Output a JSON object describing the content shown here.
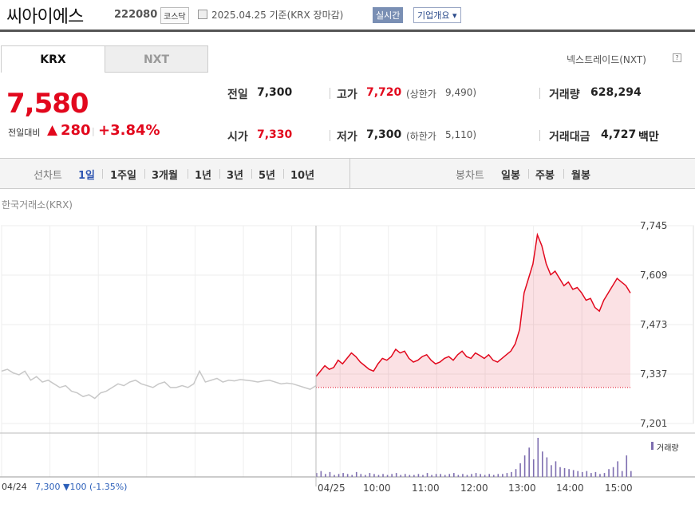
{
  "header": {
    "name": "씨아이에스",
    "code": "222080",
    "market": "코스닥",
    "base_date": "2025.04.25 기준(KRX 장마감)",
    "realtime_label": "실시간",
    "company_label": "기업개요 ▾"
  },
  "tabs": {
    "krx": "KRX",
    "nxt": "NXT",
    "nxt_link": "넥스트레이드(NXT)",
    "help": "?"
  },
  "price": {
    "current": "7,580",
    "change_label": "전일대비",
    "change_arrow": "▲",
    "change_amount": "280",
    "change_sep": "|",
    "change_pct": "+3.84%"
  },
  "summary": {
    "prev_label": "전일",
    "prev_value": "7,300",
    "open_label": "시가",
    "open_value": "7,330",
    "high_label": "고가",
    "high_value": "7,720",
    "upper_limit_label": "(상한가",
    "upper_limit_value": "9,490)",
    "low_label": "저가",
    "low_value": "7,300",
    "lower_limit_label": "(하한가",
    "lower_limit_value": "5,110)",
    "volume_label": "거래량",
    "volume_value": "628,294",
    "amount_label": "거래대금",
    "amount_value": "4,727",
    "amount_unit": "백만"
  },
  "periods": {
    "line_label": "선차트",
    "items": [
      "1일",
      "1주일",
      "3개월",
      "1년",
      "3년",
      "5년",
      "10년"
    ],
    "candle_label": "봉차트",
    "candle_items": [
      "일봉",
      "주봉",
      "월봉"
    ]
  },
  "chart_meta": {
    "market_label": "한국거래소(KRX)",
    "volume_label": "거래량"
  },
  "footer": {
    "prev_day": "04/24",
    "prev_close": "7,300 ▼100 (-1.35%)"
  },
  "colors": {
    "up": "#e2081d",
    "down": "#2b5fb9",
    "volume": "#7e6eb0",
    "prev_line": "#c8c8c8"
  },
  "chart_data": {
    "type": "line",
    "title": "",
    "y_ticks": [
      "7,745",
      "7,609",
      "7,473",
      "7,337",
      "7,201"
    ],
    "ylim": [
      7201,
      7745
    ],
    "x_ticks": [
      "04/24",
      "04/25",
      "10:00",
      "11:00",
      "12:00",
      "13:00",
      "14:00",
      "15:00"
    ],
    "reference_price": 7300,
    "prev_day_series": {
      "name": "04/24",
      "values": [
        7345,
        7350,
        7340,
        7335,
        7345,
        7320,
        7330,
        7315,
        7320,
        7310,
        7300,
        7305,
        7290,
        7285,
        7275,
        7280,
        7270,
        7285,
        7290,
        7300,
        7310,
        7305,
        7315,
        7320,
        7310,
        7305,
        7300,
        7310,
        7315,
        7300,
        7300,
        7305,
        7300,
        7310,
        7345,
        7315,
        7320,
        7325,
        7315,
        7320,
        7318,
        7322,
        7320,
        7318,
        7315,
        7318,
        7320,
        7315,
        7310,
        7312,
        7310,
        7305,
        7300,
        7295,
        7305
      ]
    },
    "today_series": {
      "name": "04/25",
      "values": [
        7330,
        7345,
        7360,
        7350,
        7355,
        7375,
        7365,
        7380,
        7395,
        7385,
        7370,
        7360,
        7350,
        7345,
        7365,
        7380,
        7375,
        7385,
        7405,
        7395,
        7400,
        7380,
        7370,
        7375,
        7385,
        7390,
        7375,
        7365,
        7370,
        7380,
        7385,
        7375,
        7390,
        7400,
        7385,
        7380,
        7395,
        7388,
        7380,
        7390,
        7375,
        7370,
        7380,
        7390,
        7400,
        7420,
        7460,
        7560,
        7600,
        7640,
        7720,
        7690,
        7640,
        7610,
        7620,
        7600,
        7580,
        7590,
        7570,
        7575,
        7560,
        7540,
        7545,
        7520,
        7510,
        7540,
        7560,
        7580,
        7600,
        7590,
        7580,
        7560
      ]
    },
    "volume_series": {
      "name": "거래량",
      "prev_values": [
        0,
        0,
        0,
        0,
        0,
        0,
        0,
        0,
        0,
        0,
        0,
        0,
        0,
        0,
        0,
        0,
        0,
        0,
        0,
        0,
        0,
        0,
        0,
        0,
        0,
        0,
        0,
        0,
        0,
        0
      ],
      "values": [
        4,
        6,
        3,
        5,
        2,
        3,
        4,
        3,
        2,
        5,
        3,
        2,
        4,
        3,
        2,
        3,
        2,
        3,
        4,
        2,
        3,
        2,
        2,
        3,
        2,
        4,
        2,
        3,
        3,
        2,
        3,
        4,
        2,
        3,
        2,
        3,
        4,
        3,
        2,
        3,
        2,
        3,
        3,
        4,
        5,
        8,
        14,
        22,
        30,
        18,
        40,
        26,
        20,
        12,
        16,
        10,
        9,
        8,
        7,
        6,
        5,
        6,
        4,
        5,
        3,
        4,
        8,
        10,
        16,
        6,
        22,
        6
      ]
    }
  }
}
